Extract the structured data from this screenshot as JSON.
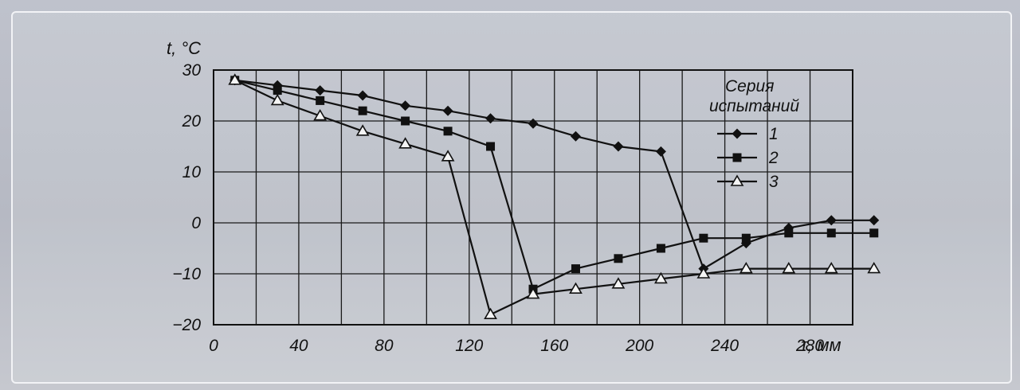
{
  "chart_data": {
    "type": "line",
    "ylabel": "t, °C",
    "xlabel": "τ, мм",
    "xlim": [
      0,
      300
    ],
    "ylim": [
      -20,
      30
    ],
    "x_ticks": [
      "0",
      "40",
      "80",
      "120",
      "160",
      "200",
      "240",
      "280"
    ],
    "y_ticks": [
      "30",
      "20",
      "10",
      "0",
      "−10",
      "−20"
    ],
    "grid": true,
    "legend": {
      "title_line1": "Серия",
      "title_line2": "испытаний",
      "placement": "top-right"
    },
    "series": [
      {
        "name": "1",
        "marker": "diamond",
        "points": [
          [
            10,
            28
          ],
          [
            30,
            27
          ],
          [
            50,
            26
          ],
          [
            70,
            25
          ],
          [
            90,
            23
          ],
          [
            110,
            22
          ],
          [
            130,
            20.5
          ],
          [
            150,
            19.5
          ],
          [
            170,
            17
          ],
          [
            190,
            15
          ],
          [
            210,
            14
          ],
          [
            230,
            -9
          ],
          [
            250,
            -4
          ],
          [
            270,
            -1
          ],
          [
            290,
            0.5
          ],
          [
            310,
            0.5
          ]
        ]
      },
      {
        "name": "2",
        "marker": "square",
        "points": [
          [
            10,
            28
          ],
          [
            30,
            26
          ],
          [
            50,
            24
          ],
          [
            70,
            22
          ],
          [
            90,
            20
          ],
          [
            110,
            18
          ],
          [
            130,
            15
          ],
          [
            150,
            -13
          ],
          [
            170,
            -9
          ],
          [
            190,
            -7
          ],
          [
            210,
            -5
          ],
          [
            230,
            -3
          ],
          [
            250,
            -3
          ],
          [
            270,
            -2
          ],
          [
            290,
            -2
          ],
          [
            310,
            -2
          ]
        ]
      },
      {
        "name": "3",
        "marker": "triangle",
        "points": [
          [
            10,
            28
          ],
          [
            30,
            24
          ],
          [
            50,
            21
          ],
          [
            70,
            18
          ],
          [
            90,
            15.5
          ],
          [
            110,
            13
          ],
          [
            130,
            -18
          ],
          [
            150,
            -14
          ],
          [
            170,
            -13
          ],
          [
            190,
            -12
          ],
          [
            210,
            -11
          ],
          [
            230,
            -10
          ],
          [
            250,
            -9
          ],
          [
            270,
            -9
          ],
          [
            290,
            -9
          ],
          [
            310,
            -9
          ]
        ]
      }
    ]
  }
}
